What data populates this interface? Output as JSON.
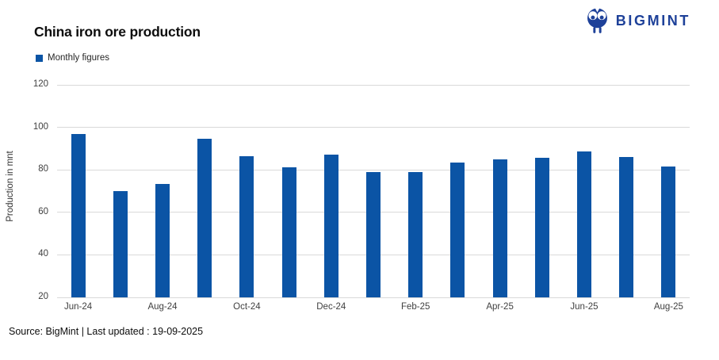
{
  "title": "China iron ore production",
  "logo": {
    "text": "BIGMINT",
    "color": "#1e4199"
  },
  "legend": {
    "label": "Monthly figures",
    "swatch_color": "#0b54a5"
  },
  "source": "Source: BigMint | Last updated : 19-09-2025",
  "chart_data": {
    "type": "bar",
    "title": "China iron ore production",
    "xlabel": "",
    "ylabel": "Production in mnt",
    "ylim": [
      20,
      120
    ],
    "yticks": [
      120,
      100,
      80,
      60,
      40,
      20
    ],
    "grid": true,
    "legend_position": "top-left",
    "bar_color": "#0b54a5",
    "categories": [
      "Jun-24",
      "Jul-24",
      "Aug-24",
      "Sep-24",
      "Oct-24",
      "Nov-24",
      "Dec-24",
      "Jan-25",
      "Feb-25",
      "Mar-25",
      "Apr-25",
      "May-25",
      "Jun-25",
      "Jul-25",
      "Aug-25"
    ],
    "x_tick_labels": [
      "Jun-24",
      "Aug-24",
      "Oct-24",
      "Dec-24",
      "Feb-25",
      "Apr-25",
      "Jun-25",
      "Aug-25"
    ],
    "x_tick_step": 2,
    "series": [
      {
        "name": "Monthly figures",
        "values": [
          96.8,
          70.0,
          73.5,
          94.5,
          86.4,
          81.3,
          87.3,
          79.0,
          79.0,
          83.4,
          84.8,
          85.8,
          88.8,
          86.2,
          81.4
        ]
      }
    ]
  }
}
